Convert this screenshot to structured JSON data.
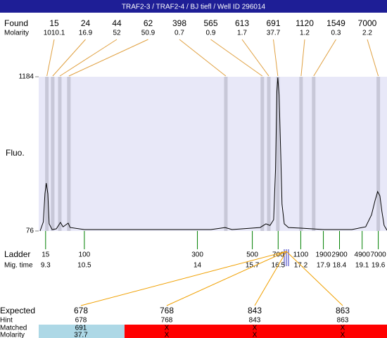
{
  "chart_data": {
    "type": "electropherogram",
    "title": "TRAF2-3 / TRAF2-4 / BJ tiefl / Well ID 296014",
    "ylabel": "Fluo.",
    "ylim": [
      76,
      1184
    ],
    "yticks": [
      76,
      1184
    ],
    "xlim": [
      9.13,
      19.87
    ],
    "found_label": "Found",
    "molarity_label": "Molarity",
    "found": {
      "sizes": [
        15,
        24,
        44,
        62,
        398,
        565,
        613,
        691,
        1120,
        1549,
        7000
      ],
      "molarity": [
        1010.1,
        16.9,
        52,
        50.9,
        0.7,
        0.9,
        1.7,
        37.7,
        1.2,
        0.3,
        2.2
      ],
      "times": [
        9.34,
        9.52,
        9.74,
        10.02,
        14.88,
        16.01,
        16.21,
        16.49,
        17.21,
        17.6,
        19.6
      ]
    },
    "ladder_label": "Ladder",
    "time_label": "Mig. time",
    "ladder": {
      "sizes": [
        15,
        100,
        300,
        500,
        700,
        1100,
        1900,
        2900,
        4900,
        7000
      ],
      "times": [
        9.3,
        10.5,
        14,
        15.7,
        16.5,
        17.2,
        17.9,
        18.4,
        19.1,
        19.6
      ]
    },
    "trace": {
      "color": "#000000",
      "x": [
        9.13,
        9.23,
        9.28,
        9.32,
        9.37,
        9.41,
        9.5,
        9.63,
        9.76,
        9.84,
        10.0,
        10.06,
        10.5,
        12.24,
        14.42,
        14.86,
        15.07,
        15.94,
        16.12,
        16.25,
        16.36,
        16.42,
        16.46,
        16.49,
        16.53,
        16.58,
        16.62,
        16.69,
        16.82,
        17.21,
        17.91,
        18.78,
        19.21,
        19.39,
        19.5,
        19.58,
        19.65,
        19.71,
        19.78,
        19.87
      ],
      "values": [
        76,
        142,
        344,
        420,
        344,
        127,
        86,
        91,
        137,
        106,
        132,
        101,
        86,
        86,
        86,
        101,
        86,
        101,
        127,
        116,
        157,
        521,
        1078,
        1179,
        1052,
        622,
        268,
        127,
        101,
        96,
        86,
        86,
        106,
        192,
        294,
        359,
        329,
        218,
        116,
        81
      ]
    },
    "expected": {
      "labels": [
        "Expected",
        "Hint",
        "Matched",
        "Molarity"
      ],
      "expected": [
        678,
        768,
        843,
        863
      ],
      "hint": [
        678,
        768,
        843,
        863
      ],
      "matched": [
        "691",
        "X",
        "X",
        "X"
      ],
      "molarity": [
        "37.7",
        "X",
        "X",
        "X"
      ]
    }
  }
}
